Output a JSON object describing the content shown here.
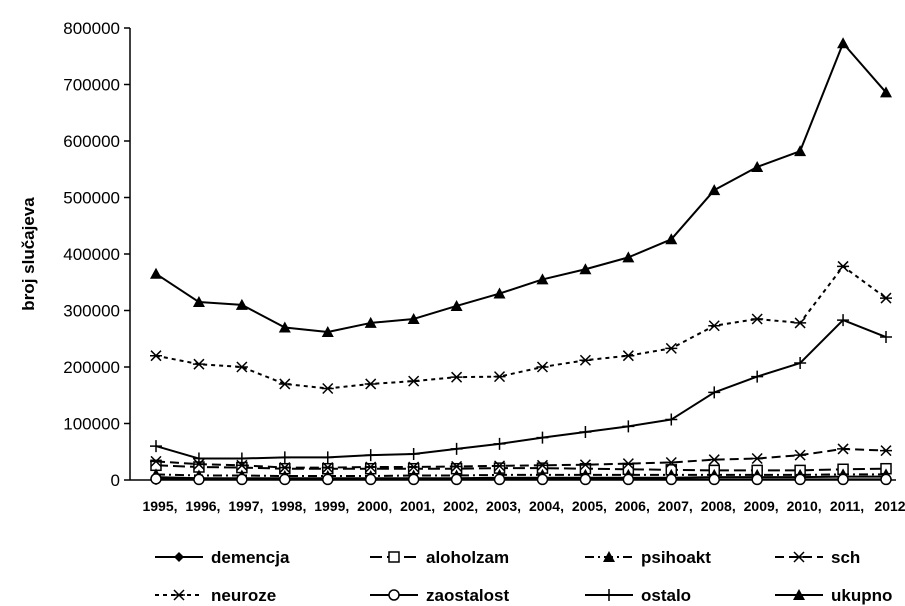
{
  "chart_data": {
    "type": "line",
    "title": "",
    "xlabel": "",
    "ylabel": "broj slučajeva",
    "ylim": [
      0,
      800000
    ],
    "y_ticks": [
      "0",
      "100000",
      "200000",
      "300000",
      "400000",
      "500000",
      "600000",
      "700000",
      "800000"
    ],
    "categories": [
      "1995,",
      "1996,",
      "1997,",
      "1998,",
      "1999,",
      "2000,",
      "2001,",
      "2002,",
      "2003,",
      "2004,",
      "2005,",
      "2006,",
      "2007,",
      "2008,",
      "2009,",
      "2010,",
      "2011,",
      "2012"
    ],
    "grid": false,
    "legend": "bottom",
    "series": [
      {
        "name": "demencja",
        "color": "#000000",
        "dash": "solid",
        "marker": "diamond",
        "values": [
          5000,
          3000,
          3000,
          3000,
          3000,
          3000,
          3000,
          3000,
          4000,
          4000,
          4000,
          4000,
          4000,
          5000,
          5000,
          5000,
          6000,
          6000
        ]
      },
      {
        "name": "aloholzam",
        "color": "#000000",
        "dash": "longdash",
        "marker": "square",
        "values": [
          26000,
          23000,
          22000,
          20000,
          20000,
          20000,
          20000,
          20000,
          21000,
          21000,
          20000,
          19000,
          18000,
          17000,
          17000,
          17000,
          19000,
          20000
        ]
      },
      {
        "name": "psihoakt",
        "color": "#000000",
        "dash": "dashdot",
        "marker": "triangle",
        "values": [
          10000,
          8000,
          8000,
          7000,
          7000,
          7000,
          8000,
          8000,
          9000,
          9000,
          9000,
          9000,
          9000,
          9000,
          9000,
          9000,
          10000,
          10000
        ]
      },
      {
        "name": "sch",
        "color": "#000000",
        "dash": "dash",
        "marker": "star",
        "values": [
          33000,
          28000,
          26000,
          22000,
          22000,
          23000,
          23000,
          24000,
          25000,
          26000,
          27000,
          29000,
          31000,
          36000,
          38000,
          44000,
          55000,
          52000
        ]
      },
      {
        "name": "neuroze",
        "color": "#000000",
        "dash": "dot",
        "marker": "star",
        "values": [
          220000,
          205000,
          200000,
          170000,
          162000,
          170000,
          175000,
          182000,
          183000,
          200000,
          212000,
          220000,
          233000,
          273000,
          285000,
          278000,
          378000,
          322000
        ]
      },
      {
        "name": "zaostalost",
        "color": "#000000",
        "dash": "solid",
        "marker": "circle",
        "values": [
          2000,
          1000,
          1000,
          1000,
          1000,
          1000,
          1000,
          1000,
          1000,
          1000,
          1000,
          1000,
          1000,
          1000,
          1000,
          1000,
          1000,
          1000
        ]
      },
      {
        "name": "ostalo",
        "color": "#000000",
        "dash": "solid",
        "marker": "plus",
        "values": [
          60000,
          38000,
          38000,
          40000,
          40000,
          44000,
          46000,
          55000,
          64000,
          75000,
          85000,
          95000,
          107000,
          155000,
          183000,
          207000,
          283000,
          253000
        ]
      },
      {
        "name": "ukupno",
        "color": "#000000",
        "dash": "solid",
        "marker": "triangle",
        "values": [
          365000,
          315000,
          310000,
          270000,
          262000,
          278000,
          285000,
          308000,
          330000,
          355000,
          373000,
          394000,
          426000,
          513000,
          554000,
          582000,
          773000,
          686000
        ]
      }
    ]
  }
}
